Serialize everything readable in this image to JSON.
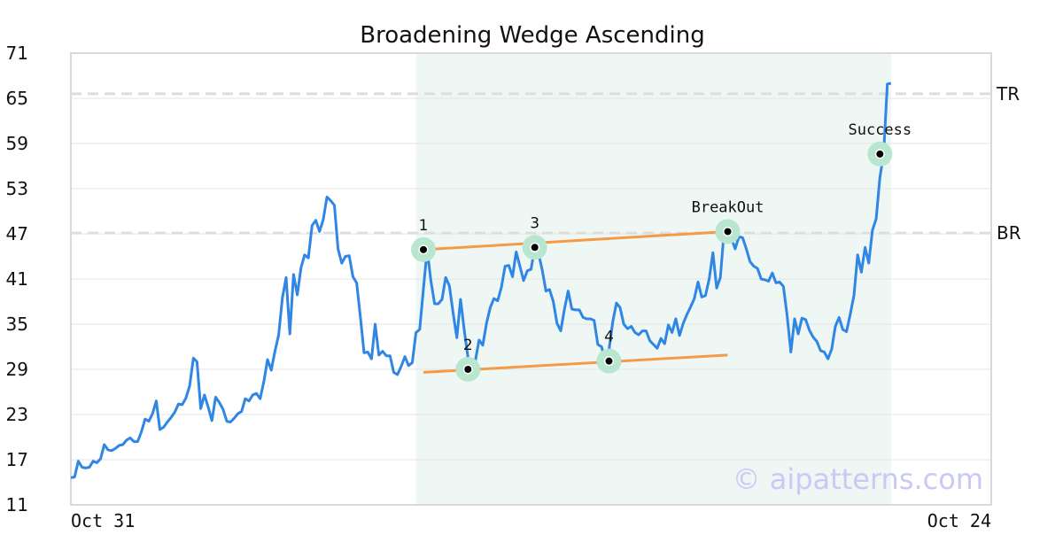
{
  "chart_data": {
    "type": "line",
    "title": "Broadening Wedge Ascending",
    "watermark": "© aipatterns.com",
    "ylim": [
      11,
      71
    ],
    "yticks": [
      "71",
      "65",
      "59",
      "53",
      "47",
      "41",
      "35",
      "29",
      "23",
      "17",
      "11"
    ],
    "x_tick_labels": [
      "Oct 31",
      "Oct 24"
    ],
    "xlim": [
      0,
      248
    ],
    "grid": true,
    "colors": {
      "line": "#2f86e4",
      "trendline": "#f59a45",
      "pattern_band": "#eef7f3",
      "marker_halo": "#b8e6cf",
      "level_line": "#dddddd",
      "watermark": "#c9c9f5"
    },
    "pattern_region": {
      "x_start": 93,
      "x_end": 221
    },
    "levels": [
      {
        "label": "TR",
        "y": 65.6
      },
      {
        "label": "BR",
        "y": 47.1
      }
    ],
    "trendlines": [
      {
        "x1": 95,
        "y1": 44.9,
        "x2": 177,
        "y2": 47.3
      },
      {
        "x1": 95,
        "y1": 28.6,
        "x2": 177,
        "y2": 30.9
      }
    ],
    "points": [
      {
        "label": "1",
        "x": 95,
        "y": 44.9,
        "label_pos": "above"
      },
      {
        "label": "2",
        "x": 107,
        "y": 29.0,
        "label_pos": "above"
      },
      {
        "label": "3",
        "x": 125,
        "y": 45.2,
        "label_pos": "above"
      },
      {
        "label": "4",
        "x": 145,
        "y": 30.1,
        "label_pos": "above"
      },
      {
        "label": "BreakOut",
        "x": 177,
        "y": 47.3,
        "label_pos": "above"
      },
      {
        "label": "Success",
        "x": 218,
        "y": 57.6,
        "label_pos": "above"
      }
    ],
    "series": [
      {
        "values": [
          14.6,
          14.7,
          16.8,
          16.0,
          15.9,
          16.0,
          16.8,
          16.6,
          17.1,
          19.0,
          18.3,
          18.2,
          18.5,
          18.9,
          19.0,
          19.6,
          19.9,
          19.4,
          19.4,
          20.7,
          22.4,
          22.1,
          23.1,
          24.8,
          21.0,
          21.3,
          22.0,
          22.6,
          23.3,
          24.4,
          24.3,
          25.2,
          26.8,
          30.5,
          30.0,
          23.8,
          25.6,
          24.0,
          22.2,
          25.3,
          24.6,
          23.7,
          22.1,
          22.0,
          22.5,
          23.1,
          23.4,
          25.1,
          24.8,
          25.6,
          25.8,
          25.1,
          27.4,
          30.3,
          28.9,
          31.4,
          33.6,
          38.5,
          41.2,
          33.7,
          41.6,
          38.9,
          42.5,
          44.2,
          43.8,
          48.1,
          48.8,
          47.3,
          48.9,
          51.9,
          51.4,
          50.8,
          45.0,
          43.1,
          44.0,
          44.1,
          41.3,
          40.5,
          36.0,
          31.2,
          31.3,
          30.4,
          35.0,
          30.9,
          31.4,
          30.8,
          30.8,
          28.6,
          28.3,
          29.4,
          30.7,
          29.5,
          29.9,
          33.9,
          34.3,
          39.7,
          44.9,
          40.8,
          37.7,
          37.7,
          38.3,
          41.2,
          40.1,
          36.5,
          33.2,
          38.3,
          34.2,
          30.6,
          29.0,
          30.2,
          32.9,
          32.2,
          35.1,
          37.2,
          38.4,
          38.1,
          39.9,
          42.7,
          42.8,
          41.3,
          44.6,
          42.7,
          40.8,
          42.1,
          42.3,
          45.2,
          44.4,
          42.2,
          39.4,
          39.6,
          38.0,
          35.1,
          34.1,
          37.0,
          39.4,
          37.0,
          36.9,
          36.9,
          35.9,
          35.7,
          35.7,
          35.5,
          32.3,
          32.0,
          30.1,
          31.6,
          35.3,
          37.8,
          37.2,
          35.0,
          34.4,
          34.7,
          33.9,
          33.6,
          34.1,
          34.1,
          32.8,
          32.3,
          31.8,
          33.1,
          32.4,
          34.9,
          33.9,
          35.7,
          33.5,
          35.1,
          36.3,
          37.3,
          38.4,
          40.6,
          38.6,
          38.8,
          41.0,
          44.5,
          39.8,
          41.2,
          47.3,
          46.5,
          46.4,
          45.0,
          46.6,
          46.5,
          45.0,
          43.3,
          42.7,
          42.4,
          41.0,
          40.9,
          40.7,
          41.8,
          40.5,
          40.6,
          40.0,
          36.1,
          31.3,
          35.7,
          33.7,
          35.8,
          35.6,
          34.2,
          33.3,
          32.7,
          31.5,
          31.3,
          30.4,
          31.7,
          34.7,
          35.9,
          34.3,
          34.0,
          36.3,
          38.8,
          44.2,
          41.9,
          45.2,
          43.1,
          47.5,
          49.0,
          54.5,
          57.6,
          66.9,
          67.0
        ]
      }
    ]
  }
}
